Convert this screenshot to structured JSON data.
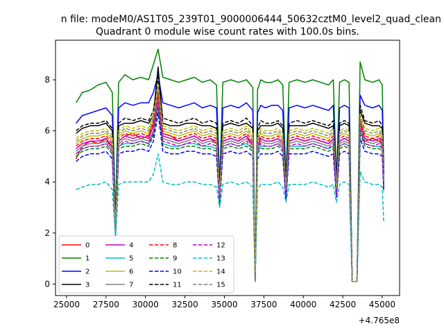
{
  "figure": {
    "suptitle": "n file: modeM0/AS1T05_239T01_9000006444_50632cztM0_level2_quad_clean",
    "offset_label": "+4.765e8"
  },
  "chart_data": {
    "type": "line",
    "title": "Quadrant 0 module wise count rates with 100.0s bins.",
    "xlabel": "",
    "ylabel": "",
    "xlim": [
      24300,
      46100
    ],
    "ylim": [
      -0.45,
      9.55
    ],
    "xticks": [
      25000,
      27500,
      30000,
      32500,
      35000,
      37500,
      40000,
      42500,
      45000
    ],
    "xtick_labels": [
      "25000",
      "27500",
      "30000",
      "32500",
      "35000",
      "37500",
      "40000",
      "42500",
      "45000"
    ],
    "yticks": [
      0,
      2,
      4,
      6,
      8
    ],
    "ytick_labels": [
      "0",
      "2",
      "4",
      "6",
      "8"
    ],
    "x_offset": 476500000,
    "grid": false,
    "legend": {
      "placement": "lower-left",
      "columns": 4
    },
    "bin_seconds": 100.0,
    "x": [
      25600,
      26000,
      26500,
      27000,
      27500,
      27900,
      28100,
      28300,
      28700,
      29200,
      29700,
      30200,
      30500,
      30800,
      31100,
      31600,
      32100,
      32600,
      33100,
      33600,
      34100,
      34500,
      34700,
      34900,
      35400,
      35900,
      36400,
      36800,
      36950,
      37100,
      37300,
      37600,
      38000,
      38400,
      38700,
      38900,
      39100,
      39600,
      40100,
      40600,
      41100,
      41600,
      41900,
      42100,
      42300,
      42600,
      42900,
      43100,
      43300,
      43400,
      43600,
      43900,
      44400,
      44800,
      45000,
      45100
    ],
    "series": [
      {
        "name": "0",
        "color": "#ff0000",
        "dash": false,
        "values": [
          4.9,
          5.4,
          5.6,
          5.5,
          5.7,
          5.3,
          2.2,
          5.6,
          5.8,
          5.9,
          5.7,
          5.8,
          6.4,
          7.7,
          5.9,
          5.8,
          5.6,
          5.7,
          5.8,
          5.6,
          5.7,
          5.5,
          3.4,
          5.6,
          5.7,
          5.6,
          5.8,
          5.4,
          0.1,
          5.3,
          5.7,
          5.6,
          5.6,
          5.7,
          5.5,
          3.6,
          5.6,
          5.7,
          5.6,
          5.7,
          5.6,
          5.5,
          5.7,
          3.7,
          5.6,
          5.7,
          5.6,
          0.1,
          0.1,
          0.1,
          6.4,
          5.6,
          5.7,
          5.6,
          5.5,
          4.1
        ]
      },
      {
        "name": "1",
        "color": "#008000",
        "dash": false,
        "values": [
          7.1,
          7.5,
          7.6,
          7.8,
          7.9,
          7.5,
          2.6,
          7.9,
          8.2,
          8.0,
          8.1,
          8.0,
          8.6,
          9.2,
          8.1,
          8.0,
          7.9,
          8.0,
          8.1,
          7.9,
          8.0,
          7.8,
          3.9,
          7.9,
          8.0,
          7.9,
          8.0,
          7.7,
          0.1,
          7.6,
          8.0,
          7.9,
          7.9,
          8.0,
          7.8,
          4.1,
          7.9,
          8.0,
          7.9,
          8.0,
          7.9,
          7.8,
          8.0,
          4.1,
          7.9,
          8.0,
          7.9,
          0.1,
          0.1,
          0.1,
          8.7,
          8.0,
          7.9,
          8.0,
          7.8,
          4.4
        ]
      },
      {
        "name": "2",
        "color": "#0000ff",
        "dash": false,
        "values": [
          6.3,
          6.6,
          6.7,
          6.8,
          6.9,
          6.6,
          2.4,
          6.9,
          7.1,
          7.0,
          7.1,
          7.1,
          7.5,
          8.2,
          7.1,
          7.0,
          6.9,
          7.0,
          7.1,
          6.9,
          7.0,
          6.9,
          3.8,
          6.9,
          7.0,
          6.9,
          7.1,
          6.8,
          0.1,
          6.7,
          7.0,
          6.9,
          7.0,
          7.0,
          6.8,
          3.9,
          6.9,
          7.0,
          6.9,
          7.0,
          6.9,
          6.8,
          7.0,
          3.9,
          6.9,
          7.0,
          6.9,
          0.1,
          0.1,
          0.1,
          7.4,
          7.0,
          6.9,
          7.0,
          6.8,
          4.3
        ]
      },
      {
        "name": "3",
        "color": "#000000",
        "dash": false,
        "values": [
          5.9,
          6.1,
          6.2,
          6.2,
          6.3,
          6.0,
          2.3,
          6.2,
          6.3,
          6.3,
          6.4,
          6.3,
          6.6,
          8.5,
          6.3,
          6.2,
          6.2,
          6.3,
          6.3,
          6.2,
          6.2,
          6.1,
          3.6,
          6.2,
          6.3,
          6.2,
          6.3,
          6.1,
          0.1,
          6.0,
          6.2,
          6.2,
          6.2,
          6.3,
          6.1,
          3.8,
          6.2,
          6.2,
          6.2,
          6.3,
          6.2,
          6.1,
          6.2,
          3.8,
          6.2,
          6.3,
          6.2,
          0.1,
          0.1,
          0.1,
          6.8,
          6.3,
          6.2,
          6.2,
          6.1,
          4.2
        ]
      },
      {
        "name": "4",
        "color": "#bf00bf",
        "dash": false,
        "values": [
          5.3,
          5.5,
          5.6,
          5.6,
          5.7,
          5.4,
          2.1,
          5.6,
          5.8,
          5.7,
          5.8,
          5.7,
          6.2,
          7.4,
          5.8,
          5.7,
          5.6,
          5.7,
          5.8,
          5.6,
          5.7,
          5.6,
          3.3,
          5.6,
          5.7,
          5.6,
          5.8,
          5.5,
          0.1,
          5.4,
          5.7,
          5.6,
          5.6,
          5.7,
          5.5,
          3.5,
          5.6,
          5.7,
          5.6,
          5.7,
          5.6,
          5.5,
          5.7,
          3.6,
          5.6,
          5.7,
          5.6,
          0.1,
          0.1,
          0.1,
          6.3,
          5.7,
          5.6,
          5.7,
          5.5,
          3.9
        ]
      },
      {
        "name": "5",
        "color": "#00bfbf",
        "dash": false,
        "values": [
          5.1,
          5.3,
          5.4,
          5.4,
          5.5,
          5.2,
          1.9,
          5.4,
          5.5,
          5.5,
          5.6,
          5.5,
          5.9,
          7.0,
          5.5,
          5.4,
          5.4,
          5.5,
          5.5,
          5.4,
          5.4,
          5.3,
          3.2,
          5.4,
          5.5,
          5.4,
          5.5,
          5.3,
          0.1,
          5.2,
          5.4,
          5.4,
          5.4,
          5.5,
          5.3,
          3.4,
          5.4,
          5.4,
          5.4,
          5.5,
          5.4,
          5.3,
          5.4,
          3.5,
          5.4,
          5.5,
          5.4,
          0.1,
          0.1,
          0.1,
          6.0,
          5.5,
          5.4,
          5.4,
          5.3,
          3.8
        ]
      },
      {
        "name": "6",
        "color": "#bfbf00",
        "dash": false,
        "values": [
          5.5,
          5.7,
          5.8,
          5.8,
          5.9,
          5.6,
          2.2,
          5.8,
          6.0,
          5.9,
          6.0,
          5.9,
          6.4,
          7.6,
          6.0,
          5.9,
          5.8,
          5.9,
          6.0,
          5.8,
          5.9,
          5.8,
          3.4,
          5.8,
          5.9,
          5.8,
          6.0,
          5.7,
          0.1,
          5.6,
          5.9,
          5.8,
          5.8,
          5.9,
          5.7,
          3.6,
          5.8,
          5.9,
          5.8,
          5.9,
          5.8,
          5.7,
          5.9,
          3.7,
          5.8,
          5.9,
          5.8,
          0.1,
          0.1,
          0.1,
          6.5,
          5.9,
          5.8,
          5.9,
          5.7,
          4.0
        ]
      },
      {
        "name": "7",
        "color": "#808080",
        "dash": false,
        "values": [
          5.2,
          5.4,
          5.5,
          5.5,
          5.6,
          5.3,
          2.0,
          5.5,
          5.7,
          5.6,
          5.7,
          5.6,
          6.0,
          7.2,
          5.7,
          5.6,
          5.5,
          5.6,
          5.7,
          5.5,
          5.6,
          5.5,
          3.3,
          5.5,
          5.6,
          5.5,
          5.7,
          5.4,
          0.1,
          5.3,
          5.6,
          5.5,
          5.5,
          5.6,
          5.4,
          3.5,
          5.5,
          5.6,
          5.5,
          5.6,
          5.5,
          5.4,
          5.6,
          3.6,
          5.5,
          5.6,
          5.5,
          0.1,
          0.1,
          0.1,
          6.2,
          5.6,
          5.5,
          5.6,
          5.4,
          3.9
        ]
      },
      {
        "name": "8",
        "color": "#ff0000",
        "dash": true,
        "values": [
          5.4,
          5.6,
          5.7,
          5.7,
          5.8,
          5.5,
          2.1,
          5.7,
          5.9,
          5.8,
          5.9,
          5.8,
          6.3,
          7.5,
          5.9,
          5.8,
          5.7,
          5.8,
          5.9,
          5.7,
          5.8,
          5.7,
          3.4,
          5.7,
          5.8,
          5.7,
          5.9,
          5.6,
          0.1,
          5.5,
          5.8,
          5.7,
          5.7,
          5.8,
          5.6,
          3.6,
          5.7,
          5.8,
          5.7,
          5.8,
          5.7,
          5.6,
          5.8,
          3.7,
          5.7,
          5.8,
          5.7,
          0.1,
          0.1,
          0.1,
          6.4,
          5.8,
          5.7,
          5.8,
          5.6,
          4.0
        ]
      },
      {
        "name": "9",
        "color": "#008000",
        "dash": true,
        "values": [
          5.0,
          5.2,
          5.3,
          5.3,
          5.4,
          5.1,
          2.0,
          5.3,
          5.4,
          5.4,
          5.5,
          5.4,
          5.8,
          6.9,
          5.4,
          5.3,
          5.3,
          5.4,
          5.4,
          5.3,
          5.3,
          5.2,
          3.2,
          5.3,
          5.4,
          5.3,
          5.4,
          5.2,
          0.1,
          5.1,
          5.3,
          5.3,
          5.3,
          5.4,
          5.2,
          3.4,
          5.3,
          5.3,
          5.3,
          5.4,
          5.3,
          5.2,
          5.3,
          3.5,
          5.3,
          5.4,
          5.3,
          0.1,
          0.1,
          0.1,
          5.9,
          5.4,
          5.3,
          5.3,
          5.2,
          3.7
        ]
      },
      {
        "name": "10",
        "color": "#0000ff",
        "dash": true,
        "values": [
          4.8,
          5.0,
          5.1,
          5.1,
          5.2,
          4.9,
          1.9,
          5.1,
          5.2,
          5.2,
          5.3,
          5.2,
          5.6,
          6.7,
          5.2,
          5.1,
          5.1,
          5.2,
          5.2,
          5.1,
          5.1,
          5.0,
          3.1,
          5.1,
          5.2,
          5.1,
          5.2,
          5.0,
          0.1,
          4.9,
          5.1,
          5.1,
          5.1,
          5.2,
          5.0,
          3.3,
          5.1,
          5.1,
          5.1,
          5.2,
          5.1,
          5.0,
          5.1,
          3.4,
          5.1,
          5.2,
          5.1,
          0.1,
          0.1,
          0.1,
          5.7,
          5.2,
          5.1,
          5.1,
          5.0,
          3.6
        ]
      },
      {
        "name": "11",
        "color": "#000000",
        "dash": true,
        "values": [
          6.0,
          6.2,
          6.3,
          6.3,
          6.4,
          6.1,
          2.3,
          6.3,
          6.5,
          6.4,
          6.5,
          6.4,
          6.8,
          8.1,
          6.5,
          6.4,
          6.3,
          6.4,
          6.5,
          6.3,
          6.4,
          6.3,
          3.7,
          6.3,
          6.4,
          6.3,
          6.5,
          6.2,
          0.1,
          6.1,
          6.4,
          6.3,
          6.3,
          6.4,
          6.2,
          3.9,
          6.3,
          6.4,
          6.3,
          6.4,
          6.3,
          6.2,
          6.4,
          4.0,
          6.3,
          6.4,
          6.3,
          0.1,
          0.1,
          0.1,
          7.0,
          6.4,
          6.3,
          6.4,
          6.2,
          4.3
        ]
      },
      {
        "name": "12",
        "color": "#bf00bf",
        "dash": true,
        "values": [
          5.1,
          5.3,
          5.4,
          5.4,
          5.5,
          5.2,
          2.0,
          5.4,
          5.6,
          5.5,
          5.6,
          5.5,
          5.9,
          7.1,
          5.6,
          5.5,
          5.4,
          5.5,
          5.6,
          5.4,
          5.5,
          5.4,
          3.3,
          5.4,
          5.5,
          5.4,
          5.6,
          5.3,
          0.1,
          5.2,
          5.5,
          5.4,
          5.4,
          5.5,
          5.3,
          3.5,
          5.4,
          5.5,
          5.4,
          5.5,
          5.4,
          5.3,
          5.5,
          3.5,
          5.4,
          5.5,
          5.4,
          0.1,
          0.1,
          0.1,
          6.1,
          5.5,
          5.4,
          5.5,
          5.3,
          3.8
        ]
      },
      {
        "name": "13",
        "color": "#00bfbf",
        "dash": true,
        "values": [
          3.7,
          3.8,
          3.9,
          3.9,
          4.0,
          3.7,
          1.8,
          3.9,
          4.0,
          4.0,
          4.0,
          4.0,
          4.3,
          5.1,
          4.0,
          3.9,
          3.9,
          4.0,
          4.0,
          3.9,
          3.9,
          3.8,
          3.0,
          3.9,
          4.0,
          3.9,
          4.0,
          3.8,
          0.1,
          3.7,
          3.9,
          3.9,
          3.9,
          4.0,
          3.8,
          3.2,
          3.9,
          3.9,
          3.9,
          4.0,
          3.9,
          3.8,
          3.9,
          3.2,
          3.9,
          4.0,
          3.9,
          0.1,
          0.1,
          0.1,
          4.4,
          4.0,
          3.9,
          3.9,
          3.8,
          2.4
        ]
      },
      {
        "name": "14",
        "color": "#bfbf00",
        "dash": true,
        "values": [
          5.7,
          5.9,
          6.0,
          6.0,
          6.1,
          5.8,
          2.2,
          6.0,
          6.2,
          6.1,
          6.2,
          6.1,
          6.6,
          7.8,
          6.2,
          6.1,
          6.0,
          6.1,
          6.2,
          6.0,
          6.1,
          6.0,
          3.5,
          6.0,
          6.1,
          6.0,
          6.2,
          5.9,
          0.1,
          5.8,
          6.1,
          6.0,
          6.0,
          6.1,
          5.9,
          3.7,
          6.0,
          6.1,
          6.0,
          6.1,
          6.0,
          5.9,
          6.1,
          3.8,
          6.0,
          6.1,
          6.0,
          0.1,
          0.1,
          0.1,
          6.7,
          6.1,
          6.0,
          6.1,
          5.9,
          4.1
        ]
      },
      {
        "name": "15",
        "color": "#808080",
        "dash": true,
        "values": [
          5.6,
          5.8,
          5.9,
          5.9,
          6.0,
          5.7,
          2.1,
          5.9,
          6.1,
          6.0,
          6.1,
          6.0,
          6.5,
          7.7,
          6.1,
          6.0,
          5.9,
          6.0,
          6.1,
          5.9,
          6.0,
          5.9,
          3.5,
          5.9,
          6.0,
          5.9,
          6.1,
          5.8,
          0.1,
          5.7,
          6.0,
          5.9,
          5.9,
          6.0,
          5.8,
          3.7,
          5.9,
          6.0,
          5.9,
          6.0,
          5.9,
          5.8,
          6.0,
          3.7,
          5.9,
          6.0,
          5.9,
          0.1,
          0.1,
          0.1,
          6.6,
          6.0,
          5.9,
          6.0,
          5.8,
          4.0
        ]
      }
    ]
  }
}
